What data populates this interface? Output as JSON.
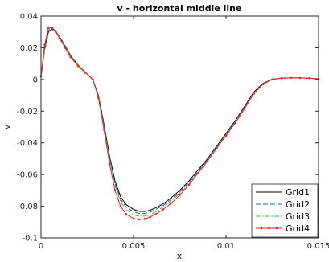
{
  "chart_data": {
    "type": "line",
    "title": "v - horizontal middle line",
    "xlabel": "x",
    "ylabel": "v",
    "xlim": [
      0,
      0.015
    ],
    "ylim": [
      -0.1,
      0.04
    ],
    "xticks": [
      0,
      0.005,
      0.01,
      0.015
    ],
    "xtick_labels": [
      "0",
      "0.005",
      "0.01",
      "0.015"
    ],
    "yticks": [
      0.04,
      0.02,
      0,
      -0.02,
      -0.04,
      -0.06,
      -0.08,
      -0.1
    ],
    "ytick_labels": [
      "0.04",
      "0.02",
      "0",
      "-0.02",
      "-0.04",
      "-0.06",
      "-0.08",
      "-0.1"
    ],
    "grid": false,
    "legend_position": "bottom-right",
    "x": [
      0,
      0.0002,
      0.0004,
      0.0006,
      0.0008,
      0.001,
      0.0013,
      0.0016,
      0.002,
      0.0024,
      0.0028,
      0.0031,
      0.0034,
      0.0037,
      0.004,
      0.0043,
      0.0046,
      0.005,
      0.0053,
      0.0056,
      0.0059,
      0.0062,
      0.0066,
      0.007,
      0.0075,
      0.008,
      0.0085,
      0.009,
      0.0095,
      0.01,
      0.0105,
      0.011,
      0.0115,
      0.012,
      0.0125,
      0.013,
      0.0135,
      0.014,
      0.0145,
      0.015
    ],
    "series": [
      {
        "name": "Grid1",
        "color": "#000000",
        "dash": "solid",
        "marker": false,
        "values": [
          0.002,
          0.02,
          0.03,
          0.032,
          0.03,
          0.027,
          0.021,
          0.015,
          0.009,
          0.0045,
          0.0,
          -0.01,
          -0.028,
          -0.048,
          -0.064,
          -0.074,
          -0.079,
          -0.082,
          -0.0832,
          -0.0833,
          -0.0825,
          -0.081,
          -0.0785,
          -0.075,
          -0.07,
          -0.064,
          -0.057,
          -0.05,
          -0.042,
          -0.034,
          -0.026,
          -0.017,
          -0.008,
          -0.0025,
          0.0002,
          0.0008,
          0.001,
          0.001,
          0.0008,
          0.0004
        ]
      },
      {
        "name": "Grid2",
        "color": "#2a5caa",
        "dash": "dashed",
        "marker": false,
        "values": [
          0.002,
          0.02,
          0.031,
          0.0325,
          0.0305,
          0.0272,
          0.0215,
          0.0153,
          0.0092,
          0.0046,
          0.0,
          -0.0105,
          -0.029,
          -0.049,
          -0.0655,
          -0.0755,
          -0.0805,
          -0.0835,
          -0.0845,
          -0.0845,
          -0.0837,
          -0.082,
          -0.0795,
          -0.076,
          -0.071,
          -0.065,
          -0.058,
          -0.0505,
          -0.0425,
          -0.0345,
          -0.0265,
          -0.0175,
          -0.0085,
          -0.0028,
          0.0001,
          0.0008,
          0.001,
          0.001,
          0.0008,
          0.0004
        ]
      },
      {
        "name": "Grid3",
        "color": "#3cb043",
        "dash": "dashdot",
        "marker": false,
        "values": [
          0.002,
          0.018,
          0.029,
          0.0315,
          0.0302,
          0.027,
          0.0212,
          0.0152,
          0.0091,
          0.0045,
          0.0,
          -0.011,
          -0.03,
          -0.05,
          -0.067,
          -0.077,
          -0.082,
          -0.0855,
          -0.0862,
          -0.0862,
          -0.0852,
          -0.0835,
          -0.0805,
          -0.077,
          -0.072,
          -0.066,
          -0.0585,
          -0.051,
          -0.043,
          -0.035,
          -0.027,
          -0.018,
          -0.0088,
          -0.003,
          0.0001,
          0.0008,
          0.001,
          0.001,
          0.0008,
          0.0004
        ]
      },
      {
        "name": "Grid4",
        "color": "#ee2222",
        "dash": "solid",
        "marker": true,
        "values": [
          0.002,
          0.022,
          0.0325,
          0.0325,
          0.03,
          0.026,
          0.02,
          0.014,
          0.0085,
          0.0043,
          0.0,
          -0.0115,
          -0.0315,
          -0.053,
          -0.07,
          -0.08,
          -0.085,
          -0.0878,
          -0.0883,
          -0.088,
          -0.0868,
          -0.085,
          -0.082,
          -0.0785,
          -0.073,
          -0.0665,
          -0.059,
          -0.0515,
          -0.0435,
          -0.0355,
          -0.0275,
          -0.0185,
          -0.009,
          -0.003,
          0.0,
          0.0008,
          0.001,
          0.001,
          0.0008,
          0.0004
        ]
      }
    ]
  }
}
